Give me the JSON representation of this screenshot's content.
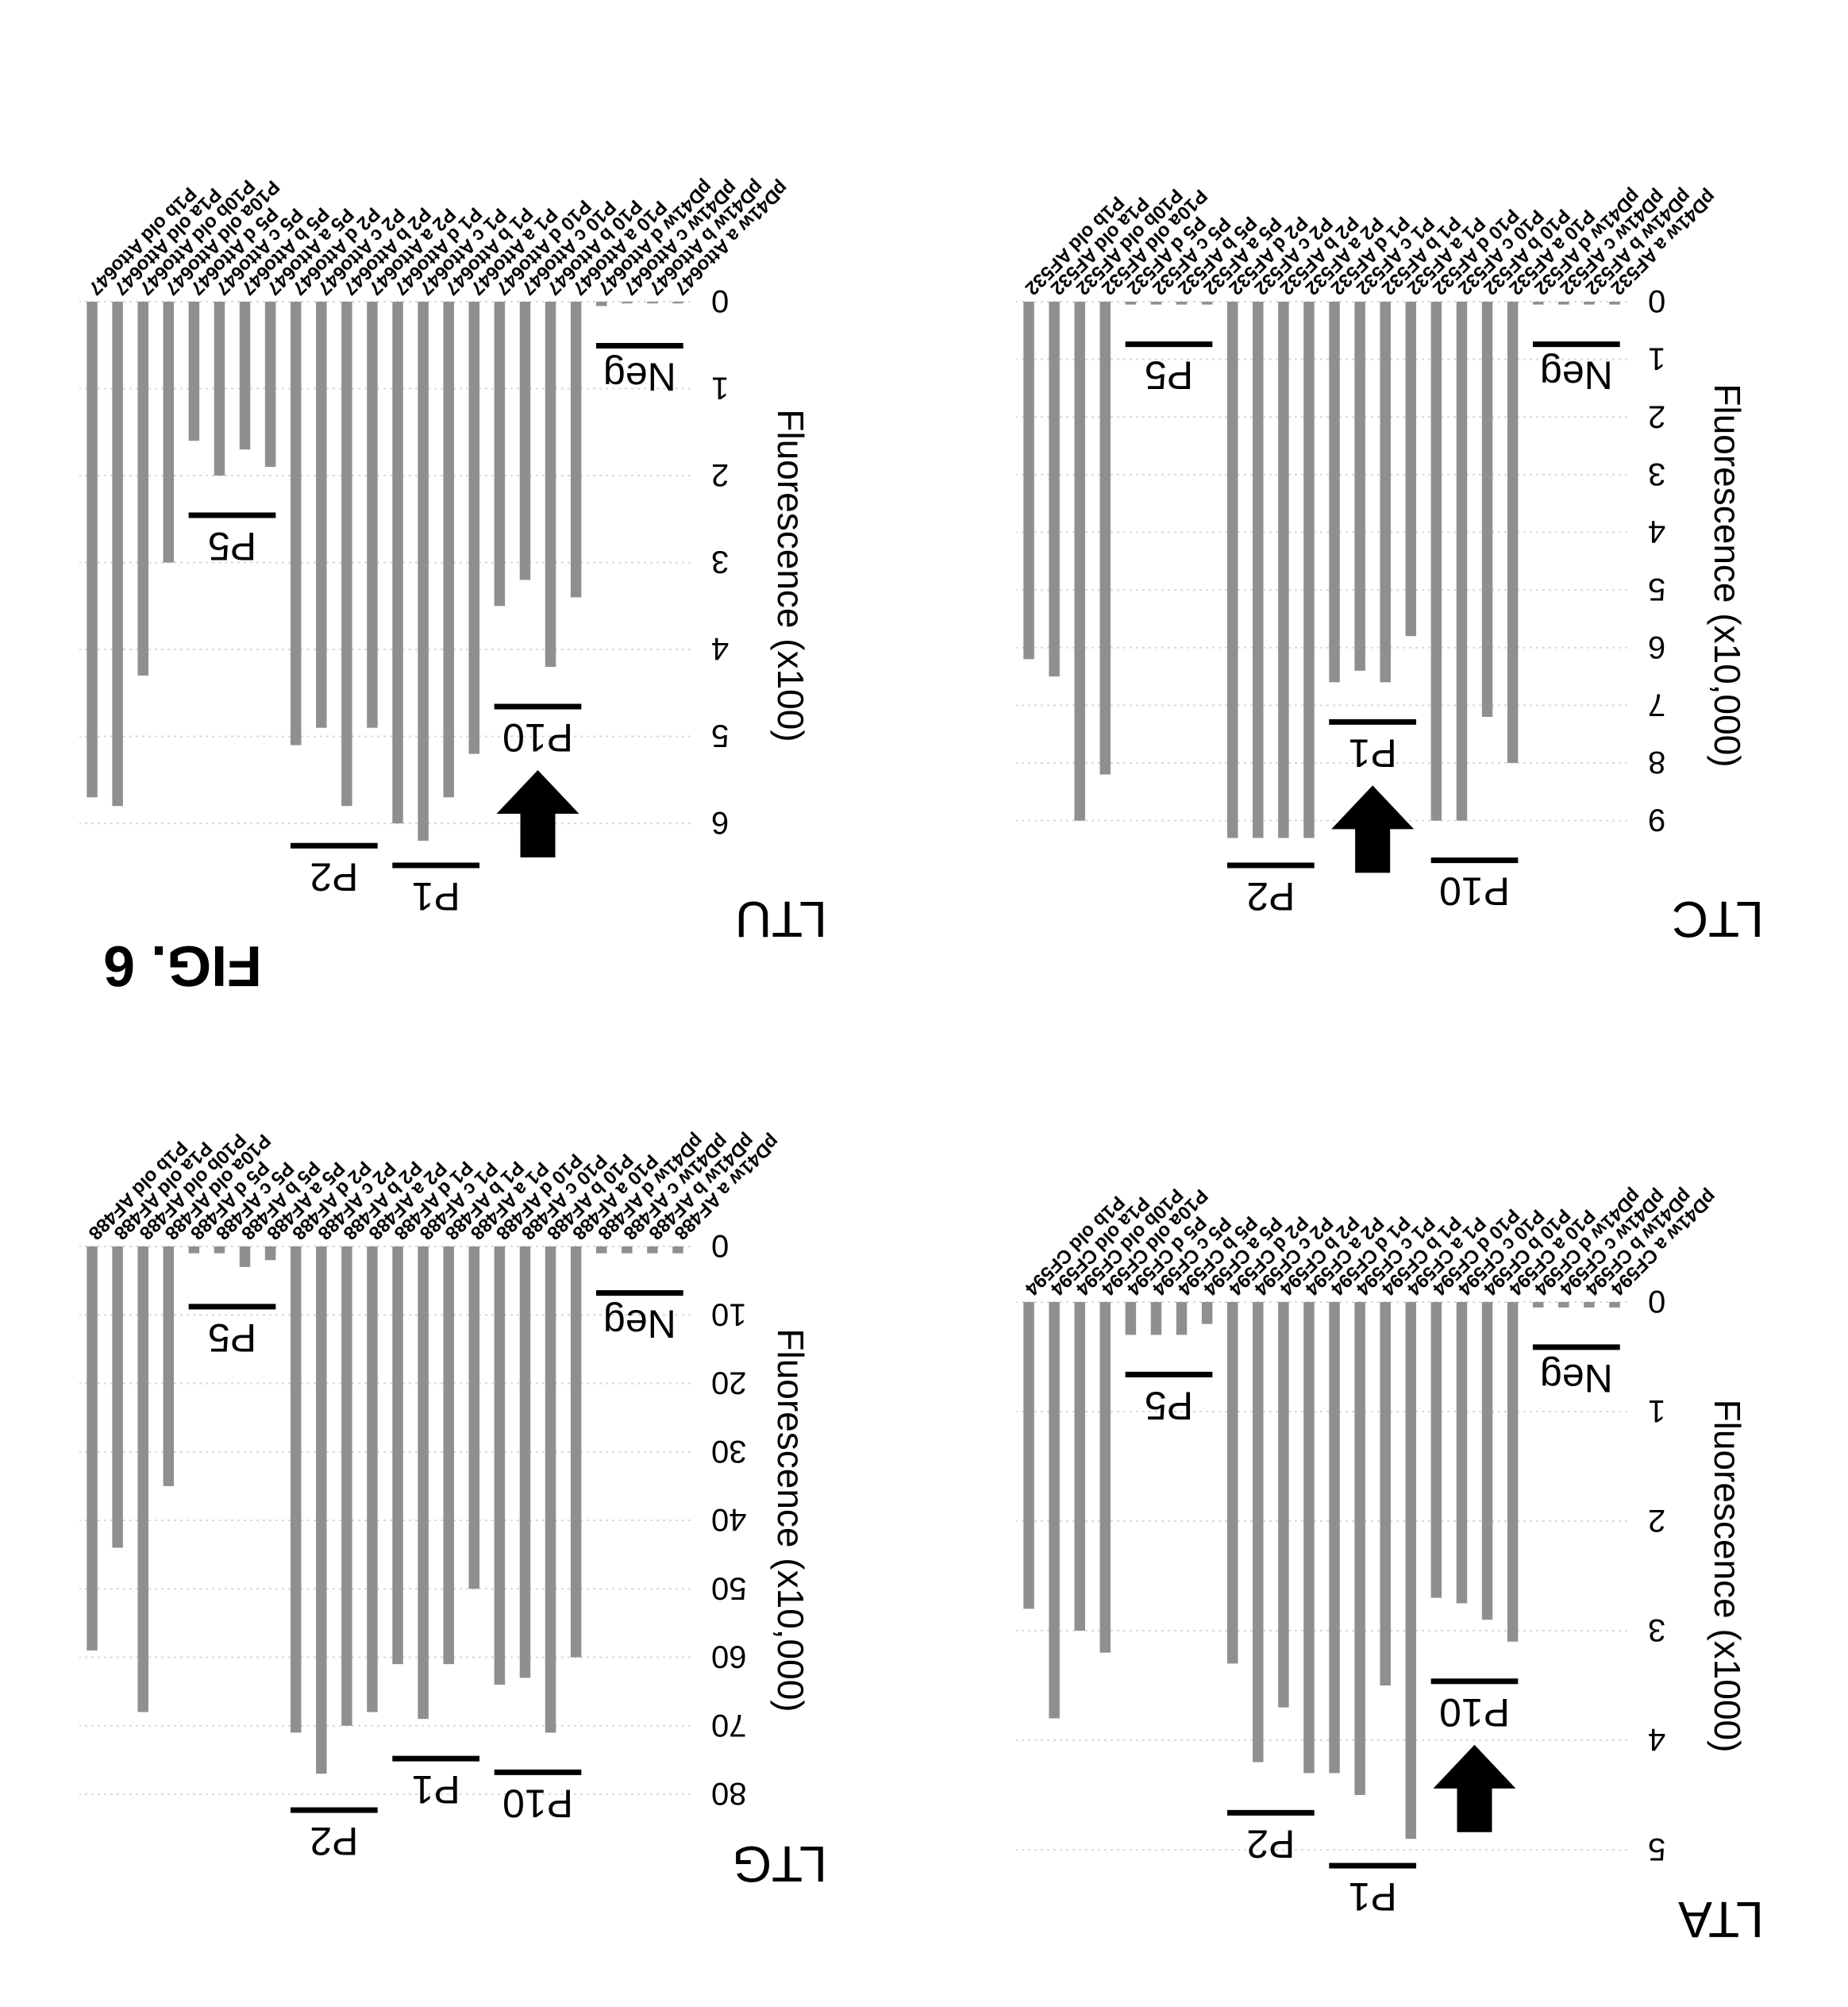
{
  "figure": {
    "label": "FIG. 6",
    "colors": {
      "bar": "#8f8f8f",
      "grid": "#d9d9d9",
      "marker": "#000000"
    }
  },
  "panels": [
    {
      "id": "LTG",
      "title": "LTG",
      "chart_data": {
        "type": "bar",
        "title": "LTG",
        "ylabel": "Fluorescence (x10,000)",
        "xlabel": "",
        "ylim": [
          0,
          80
        ],
        "yticks": [
          0,
          10,
          20,
          30,
          40,
          50,
          60,
          70,
          80
        ],
        "grid": true,
        "categories": [
          "pD41w a AF488",
          "pD41w b AF488",
          "pD41w c AF488",
          "pD41w d AF488",
          "P10 a AF488",
          "P10 b AF488",
          "P10 c AF488",
          "P10 d AF488",
          "P1 a AF488",
          "P1 b AF488",
          "P1 c AF488",
          "P1 d AF488",
          "P2 a AF488",
          "P2 b AF488",
          "P2 c AF488",
          "P2 d AF488",
          "P5 a AF488",
          "P5 b AF488",
          "P5 c AF488",
          "P5 d AF488",
          "P10a old AF488",
          "P10b old AF488",
          "P1a old AF488",
          "P1b old AF488"
        ],
        "values": [
          1,
          1,
          1,
          1,
          60,
          71,
          63,
          64,
          50,
          61,
          69,
          61,
          68,
          70,
          77,
          71,
          2,
          3,
          1,
          1,
          35,
          68,
          44,
          59
        ],
        "groups": [
          {
            "label": "Neg",
            "start": 0,
            "end": 3
          },
          {
            "label": "P10",
            "start": 4,
            "end": 7
          },
          {
            "label": "P1",
            "start": 8,
            "end": 11
          },
          {
            "label": "P2",
            "start": 12,
            "end": 15
          },
          {
            "label": "P5",
            "start": 16,
            "end": 19
          }
        ],
        "arrow": null
      }
    },
    {
      "id": "LTA",
      "title": "LTA",
      "chart_data": {
        "type": "bar",
        "title": "LTA",
        "ylabel": "Fluorescence (x1000)",
        "xlabel": "",
        "ylim": [
          0,
          5
        ],
        "yticks": [
          0,
          1,
          2,
          3,
          4,
          5
        ],
        "grid": true,
        "categories": [
          "pD41w a CF594",
          "pD41w b CF594",
          "pD41w c CF594",
          "pD41w d CF594",
          "P10 a CF594",
          "P10 b CF594",
          "P10 c CF594",
          "P10 d CF594",
          "P1 a CF594",
          "P1 b CF594",
          "P1 c CF594",
          "P1 d CF594",
          "P2 a CF594",
          "P2 b CF594",
          "P2 c CF594",
          "P2 d CF594",
          "P5 a CF594",
          "P5 b CF594",
          "P5 c CF594",
          "P5 d CF594",
          "P10a old CF594",
          "P10b old CF594",
          "P1a old CF594",
          "P1b old CF594"
        ],
        "values": [
          0.05,
          0.05,
          0.05,
          0.05,
          3.1,
          2.9,
          2.75,
          2.7,
          4.9,
          3.5,
          4.5,
          4.3,
          4.3,
          3.7,
          4.2,
          3.3,
          0.2,
          0.3,
          0.3,
          0.3,
          3.2,
          3.0,
          3.8,
          2.8
        ],
        "groups": [
          {
            "label": "Neg",
            "start": 0,
            "end": 3
          },
          {
            "label": "P10",
            "start": 4,
            "end": 7
          },
          {
            "label": "P1",
            "start": 8,
            "end": 11
          },
          {
            "label": "P2",
            "start": 12,
            "end": 15
          },
          {
            "label": "P5",
            "start": 16,
            "end": 19
          }
        ],
        "arrow": {
          "group": "P10"
        }
      }
    },
    {
      "id": "LTU",
      "title": "LTU",
      "chart_data": {
        "type": "bar",
        "title": "LTU",
        "ylabel": "Fluorescence (x100)",
        "xlabel": "",
        "ylim": [
          0,
          6.3
        ],
        "yticks": [
          0,
          1,
          2,
          3,
          4,
          5,
          6
        ],
        "grid": true,
        "categories": [
          "pD41w a Atto647",
          "pD41w b Atto647",
          "pD41w c Atto647",
          "pD41w d Atto647",
          "P10 a Atto647",
          "P10 b Atto647",
          "P10 c Atto647",
          "P10 d Atto647",
          "P1 a Atto647",
          "P1 b Atto647",
          "P1 c Atto647",
          "P1 d Atto647",
          "P2 a Atto647",
          "P2 b Atto647",
          "P2 c Atto647",
          "P2 d Atto647",
          "P5 a Atto647",
          "P5 b Atto647",
          "P5 c Atto647",
          "P5 d Atto647",
          "P10a old Atto647",
          "P10b old Atto647",
          "P1a old Atto647",
          "P1b old Atto647"
        ],
        "values": [
          0.02,
          0.02,
          0.02,
          0.05,
          3.4,
          4.2,
          3.2,
          3.5,
          5.2,
          5.7,
          6.2,
          6.0,
          4.9,
          5.8,
          4.9,
          5.1,
          1.9,
          1.7,
          2.0,
          1.6,
          3.0,
          4.3,
          5.8,
          5.7
        ],
        "groups": [
          {
            "label": "Neg",
            "start": 0,
            "end": 3
          },
          {
            "label": "P10",
            "start": 4,
            "end": 7
          },
          {
            "label": "P1",
            "start": 8,
            "end": 11
          },
          {
            "label": "P2",
            "start": 12,
            "end": 15
          },
          {
            "label": "P5",
            "start": 16,
            "end": 19
          }
        ],
        "arrow": {
          "group": "P10"
        }
      }
    },
    {
      "id": "LTC",
      "title": "LTC",
      "chart_data": {
        "type": "bar",
        "title": "LTC",
        "ylabel": "Fluorescence (x10,000)",
        "xlabel": "",
        "ylim": [
          0,
          9.5
        ],
        "yticks": [
          0,
          1,
          2,
          3,
          4,
          5,
          6,
          7,
          8,
          9
        ],
        "grid": true,
        "categories": [
          "pD41w a AF532",
          "pD41w b AF532",
          "pD41w c AF532",
          "pD41w d AF532",
          "P10 a AF532",
          "P10 b AF532",
          "P10 c AF532",
          "P10 d AF532",
          "P1 a AF532",
          "P1 b AF532",
          "P1 c AF532",
          "P1 d AF532",
          "P2 a AF532",
          "P2 b AF532",
          "P2 c AF532",
          "P2 d AF532",
          "P5 a AF532",
          "P5 b AF532",
          "P5 c AF532",
          "P5 d AF532",
          "P10a old AF532",
          "P10b old AF532",
          "P1a old AF532",
          "P1b old AF532"
        ],
        "values": [
          0.05,
          0.05,
          0.05,
          0.05,
          8.0,
          7.2,
          9.0,
          9.0,
          5.8,
          6.6,
          6.4,
          6.6,
          9.3,
          9.3,
          9.3,
          9.3,
          0.05,
          0.05,
          0.05,
          0.05,
          8.2,
          9.0,
          6.5,
          6.2
        ],
        "groups": [
          {
            "label": "Neg",
            "start": 0,
            "end": 3
          },
          {
            "label": "P10",
            "start": 4,
            "end": 7
          },
          {
            "label": "P1",
            "start": 8,
            "end": 11
          },
          {
            "label": "P2",
            "start": 12,
            "end": 15
          },
          {
            "label": "P5",
            "start": 16,
            "end": 19
          }
        ],
        "arrow": {
          "group": "P1"
        }
      }
    }
  ]
}
